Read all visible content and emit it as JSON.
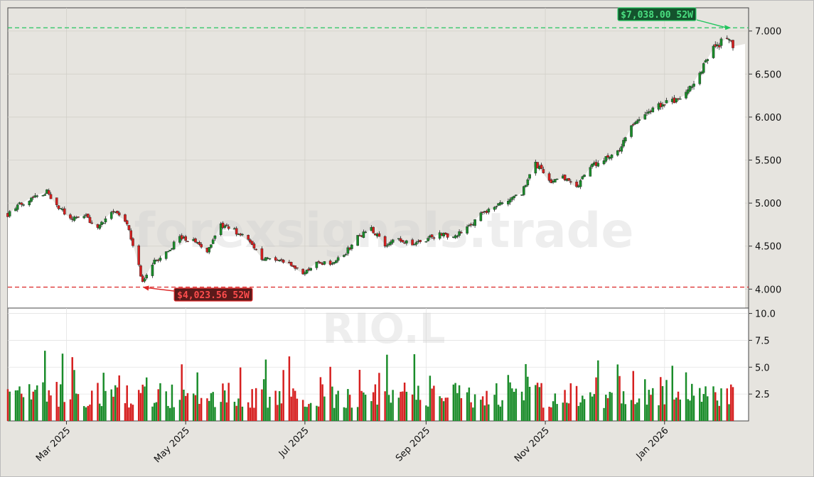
{
  "chart_data": {
    "type": "candlestick",
    "watermark": "forexsignals.trade",
    "symbol": "RIO.L",
    "price_axis": {
      "ticks": [
        "4.000",
        "4.500",
        "5.000",
        "5.500",
        "6.000",
        "6.500",
        "7.000"
      ],
      "tick_values": [
        4000,
        4500,
        5000,
        5500,
        6000,
        6500,
        7000
      ],
      "ylim": [
        3780,
        7270
      ]
    },
    "volume_axis": {
      "ticks": [
        "2.5",
        "5.0",
        "7.5",
        "10.0"
      ],
      "tick_values": [
        2.5,
        5.0,
        7.5,
        10.0
      ],
      "ylim": [
        0,
        10.5
      ]
    },
    "x_axis": {
      "ticks": [
        "Mar 2025",
        "May 2025",
        "Jul 2025",
        "Sep 2025",
        "Nov 2025",
        "Jan 2026"
      ],
      "tick_dates": [
        "2025-03-01",
        "2025-05-01",
        "2025-07-01",
        "2025-09-01",
        "2025-11-01",
        "2026-01-01"
      ],
      "xlim": [
        "2025-01-30",
        "2026-02-13"
      ]
    },
    "high_52w": {
      "value": 7038.0,
      "label": "$7,038.00 52W",
      "date": "2026-02-04",
      "color": "#22c55e"
    },
    "low_52w": {
      "value": 4023.56,
      "label": "$4,023.56 52W",
      "date": "2025-04-09",
      "color": "#dc2626"
    },
    "colors": {
      "up": "#1a8c2a",
      "down": "#d61f1f",
      "bg": "#e6e4df"
    },
    "price_path": [
      [
        "2025-01-30",
        4870
      ],
      [
        "2025-02-05",
        4980
      ],
      [
        "2025-02-12",
        5080
      ],
      [
        "2025-02-19",
        5130
      ],
      [
        "2025-02-24",
        4970
      ],
      [
        "2025-03-03",
        4820
      ],
      [
        "2025-03-10",
        4860
      ],
      [
        "2025-03-17",
        4720
      ],
      [
        "2025-03-24",
        4900
      ],
      [
        "2025-03-31",
        4800
      ],
      [
        "2025-04-04",
        4530
      ],
      [
        "2025-04-09",
        4080
      ],
      [
        "2025-04-14",
        4300
      ],
      [
        "2025-04-21",
        4420
      ],
      [
        "2025-04-28",
        4600
      ],
      [
        "2025-05-05",
        4560
      ],
      [
        "2025-05-12",
        4450
      ],
      [
        "2025-05-19",
        4740
      ],
      [
        "2025-05-26",
        4680
      ],
      [
        "2025-06-02",
        4560
      ],
      [
        "2025-06-09",
        4360
      ],
      [
        "2025-06-16",
        4360
      ],
      [
        "2025-06-23",
        4280
      ],
      [
        "2025-06-30",
        4180
      ],
      [
        "2025-07-07",
        4310
      ],
      [
        "2025-07-14",
        4290
      ],
      [
        "2025-07-21",
        4400
      ],
      [
        "2025-07-28",
        4600
      ],
      [
        "2025-08-04",
        4700
      ],
      [
        "2025-08-11",
        4520
      ],
      [
        "2025-08-18",
        4580
      ],
      [
        "2025-08-25",
        4520
      ],
      [
        "2025-09-01",
        4580
      ],
      [
        "2025-09-08",
        4640
      ],
      [
        "2025-09-15",
        4610
      ],
      [
        "2025-09-22",
        4700
      ],
      [
        "2025-09-29",
        4880
      ],
      [
        "2025-10-06",
        4940
      ],
      [
        "2025-10-13",
        5040
      ],
      [
        "2025-10-20",
        5120
      ],
      [
        "2025-10-27",
        5460
      ],
      [
        "2025-11-03",
        5250
      ],
      [
        "2025-11-10",
        5290
      ],
      [
        "2025-11-17",
        5180
      ],
      [
        "2025-11-24",
        5420
      ],
      [
        "2025-12-01",
        5520
      ],
      [
        "2025-12-08",
        5580
      ],
      [
        "2025-12-15",
        5880
      ],
      [
        "2025-12-22",
        6000
      ],
      [
        "2025-12-29",
        6130
      ],
      [
        "2026-01-05",
        6180
      ],
      [
        "2026-01-12",
        6260
      ],
      [
        "2026-01-19",
        6520
      ],
      [
        "2026-01-26",
        6800
      ],
      [
        "2026-02-02",
        6920
      ],
      [
        "2026-02-05",
        6820
      ]
    ],
    "volume_seed": 7
  }
}
